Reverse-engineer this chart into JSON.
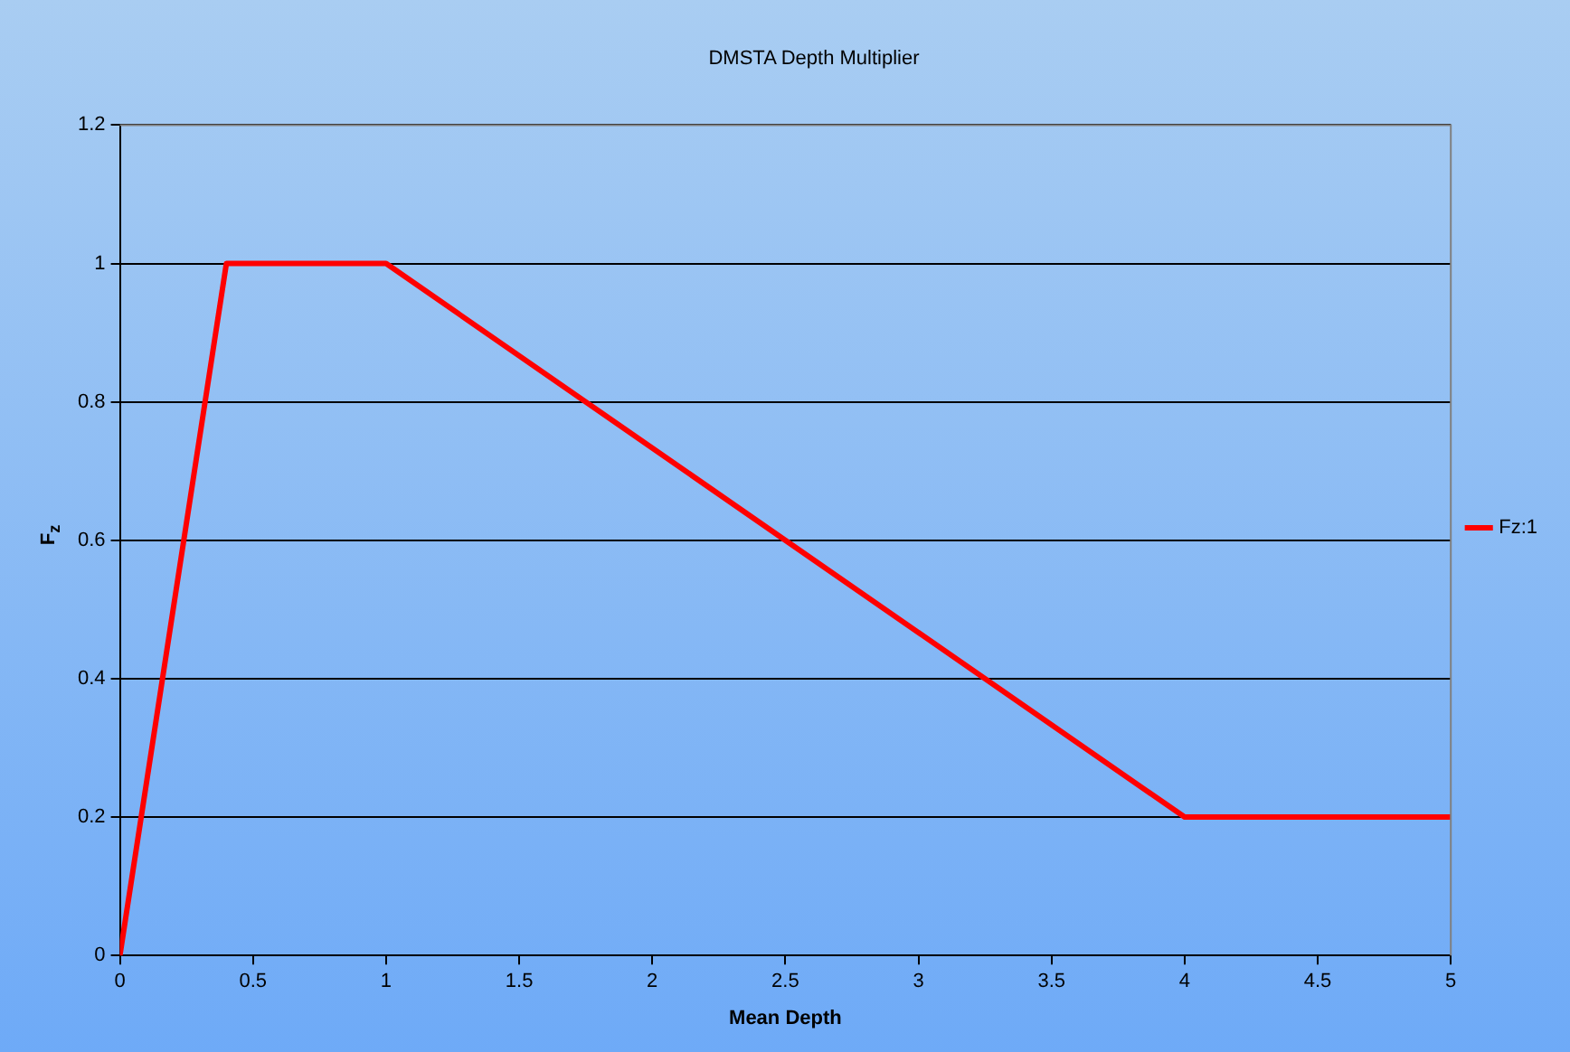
{
  "chart_data": {
    "type": "line",
    "title": "DMSTA Depth Multiplier",
    "xlabel": "Mean Depth",
    "ylabel": "F$_{z}$",
    "x": [
      0,
      0.4,
      1,
      4,
      5
    ],
    "series": [
      {
        "name": "Fz:1",
        "color": "#ff0000",
        "values": [
          0,
          1,
          1,
          0.2,
          0.2
        ]
      }
    ],
    "xlim": [
      0,
      5
    ],
    "xticks": [
      0,
      0.5,
      1,
      1.5,
      2,
      2.5,
      3,
      3.5,
      4,
      4.5,
      5
    ],
    "ylim": [
      0,
      1.2
    ],
    "yticks": [
      0,
      0.2,
      0.4,
      0.6,
      0.8,
      1,
      1.2
    ],
    "grid": "y",
    "legend": "right",
    "marker": "none",
    "line_style": "solid"
  }
}
